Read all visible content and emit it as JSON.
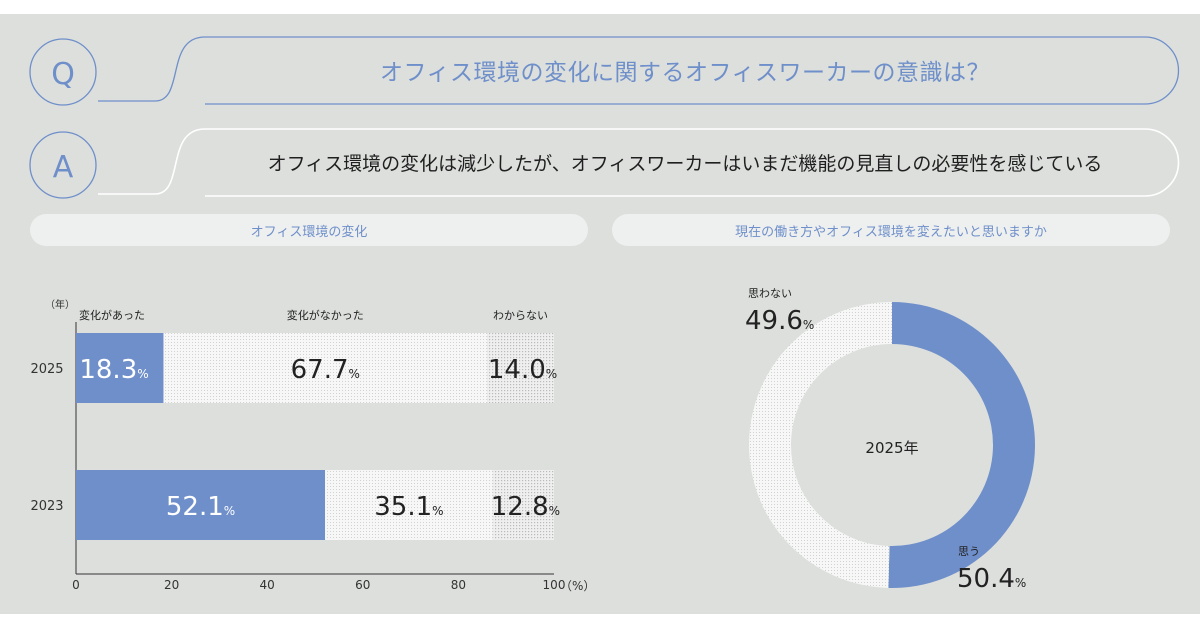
{
  "qa": {
    "q_letter": "Q",
    "question": "オフィス環境の変化に関するオフィスワーカーの意識は？",
    "a_letter": "A",
    "answer": "オフィス環境の変化は減少したが、オフィスワーカーはいまだ機能の見直しの必要性を感じている"
  },
  "colors": {
    "accent": "#6f8fca",
    "background": "#dcdfdc",
    "pill": "#eef0ef"
  },
  "chart_data": [
    {
      "type": "bar",
      "orientation": "horizontal",
      "stacked": true,
      "title": "オフィス環境の変化",
      "ylabel": "（年）",
      "xlabel": "（%）",
      "categories": [
        "2025",
        "2023"
      ],
      "series": [
        {
          "name": "変化があった",
          "values": [
            18.3,
            52.1
          ],
          "color": "#6f8fca"
        },
        {
          "name": "変化がなかった",
          "values": [
            67.7,
            35.1
          ],
          "color": "#f4f5f4"
        },
        {
          "name": "わからない",
          "values": [
            14.0,
            12.8
          ],
          "color": "#eeeeee"
        }
      ],
      "xlim": [
        0,
        100
      ],
      "xticks": [
        "0",
        "20",
        "40",
        "60",
        "80",
        "100"
      ],
      "value_unit": "%"
    },
    {
      "type": "pie",
      "donut": true,
      "title": "現在の働き方やオフィス環境を変えたいと思いますか",
      "center_label": "2025年",
      "slices": [
        {
          "name": "思う",
          "value": 50.4,
          "color": "#6f8fca"
        },
        {
          "name": "思わない",
          "value": 49.6,
          "color": "#f4f5f4"
        }
      ],
      "value_unit": "%"
    }
  ]
}
